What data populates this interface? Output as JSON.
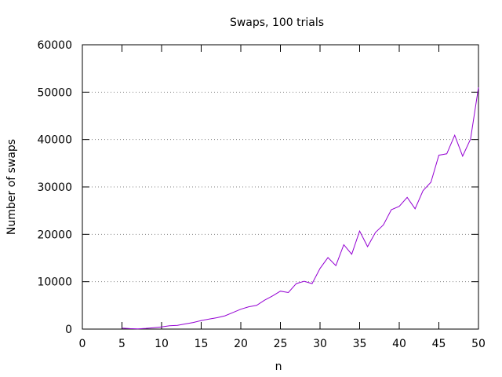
{
  "chart_data": {
    "type": "line",
    "title": "Swaps, 100 trials",
    "xlabel": "n",
    "ylabel": "Number of swaps",
    "xlim": [
      0,
      50
    ],
    "ylim": [
      0,
      60000
    ],
    "xticks": [
      0,
      5,
      10,
      15,
      20,
      25,
      30,
      35,
      40,
      45,
      50
    ],
    "yticks": [
      0,
      10000,
      20000,
      30000,
      40000,
      50000,
      60000
    ],
    "grid": "horizontal dotted",
    "line_color": "#9400d3",
    "series": [
      {
        "x": [
          5,
          6,
          7,
          8,
          9,
          10,
          11,
          12,
          13,
          14,
          15,
          16,
          17,
          18,
          19,
          20,
          21,
          22,
          23,
          24,
          25,
          26,
          27,
          28,
          29,
          30,
          31,
          32,
          33,
          34,
          35,
          36,
          37,
          38,
          39,
          40,
          41,
          42,
          43,
          44,
          45,
          46,
          47,
          48,
          49,
          50
        ],
        "y": [
          200,
          100,
          50,
          150,
          300,
          450,
          700,
          800,
          1100,
          1400,
          1800,
          2100,
          2400,
          2800,
          3500,
          4200,
          4700,
          5000,
          6100,
          7000,
          8000,
          7700,
          9600,
          10100,
          9600,
          12800,
          15100,
          13400,
          17800,
          15800,
          20700,
          17400,
          20400,
          22000,
          25200,
          25900,
          27800,
          25400,
          29200,
          31000,
          36700,
          37000,
          40900,
          36500,
          40100,
          51000
        ]
      }
    ]
  }
}
